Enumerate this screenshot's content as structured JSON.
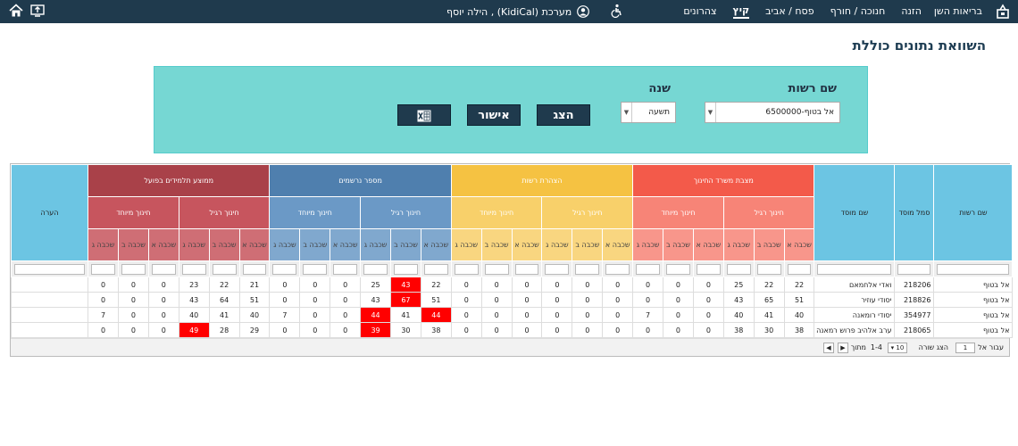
{
  "topbar": {
    "nav": [
      "בריאות השן",
      "הזנה",
      "חנוכה / חורף",
      "פסח / אביב",
      "קיץ",
      "צהרונים"
    ],
    "active": "קיץ",
    "user": "מערכת (KidiCal) , הילה יוסף"
  },
  "page_title": "השוואת נתונים כוללת",
  "filter": {
    "authority_label": "שם רשות",
    "authority_value": "אל בטוף-6500000",
    "year_label": "שנה",
    "year_value": "תשעה",
    "show_button": "הצג",
    "confirm_button": "אישור"
  },
  "table": {
    "col_authority": "שם רשות",
    "col_code": "סמל מוסד",
    "col_name": "שם מוסד",
    "col_note": "הערה",
    "groups": [
      "מצבת משרד החינוך",
      "הצהרת רשות",
      "מספר נרשמים",
      "ממוצע תלמידים בפועל"
    ],
    "sub_regular": "חינוך רגיל",
    "sub_special": "חינוך מיוחד",
    "grades": [
      "שכבה א",
      "שכבה ב",
      "שכבה ג"
    ],
    "rows": [
      {
        "auth": "אל בטוף",
        "code": "218206",
        "name": "ואדי אלחמאם",
        "vals": [
          "22",
          "22",
          "25",
          "0",
          "0",
          "0",
          "0",
          "0",
          "0",
          "0",
          "0",
          "0",
          "22",
          "43",
          "25",
          "0",
          "0",
          "0",
          "21",
          "22",
          "23",
          "0",
          "0",
          "0"
        ]
      },
      {
        "auth": "אל בטוף",
        "code": "218826",
        "name": "יסודי עוזיר",
        "vals": [
          "51",
          "65",
          "43",
          "0",
          "0",
          "0",
          "0",
          "0",
          "0",
          "0",
          "0",
          "0",
          "51",
          "67",
          "43",
          "0",
          "0",
          "0",
          "51",
          "64",
          "43",
          "0",
          "0",
          "0"
        ]
      },
      {
        "auth": "אל בטוף",
        "code": "354977",
        "name": "יסודי רומאנה",
        "vals": [
          "40",
          "41",
          "40",
          "0",
          "0",
          "7",
          "0",
          "0",
          "0",
          "0",
          "0",
          "0",
          "44",
          "41",
          "44",
          "0",
          "0",
          "7",
          "40",
          "41",
          "40",
          "0",
          "0",
          "7"
        ]
      },
      {
        "auth": "אל בטוף",
        "code": "218065",
        "name": "ערב אלהיב פרוש רמאנה",
        "vals": [
          "38",
          "30",
          "38",
          "0",
          "0",
          "0",
          "0",
          "0",
          "0",
          "0",
          "0",
          "0",
          "38",
          "30",
          "39",
          "0",
          "0",
          "0",
          "29",
          "28",
          "49",
          "0",
          "0",
          "0"
        ]
      }
    ],
    "red_cells": [
      [
        0,
        13
      ],
      [
        1,
        13
      ],
      [
        2,
        12
      ],
      [
        2,
        14
      ],
      [
        3,
        14
      ],
      [
        3,
        20
      ]
    ]
  },
  "pager": {
    "goto": "עבור אל",
    "page": "1",
    "show_rows": "הצג שורה",
    "rows_value": "10",
    "range": "1-4",
    "of": "מתוך 4"
  }
}
